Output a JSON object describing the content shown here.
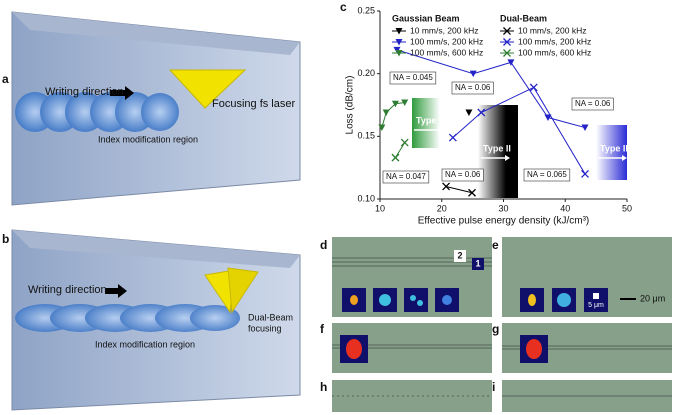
{
  "chart_data": {
    "type": "line",
    "panel": "c",
    "xlabel": "Effective pulse energy density (kJ/cm³)",
    "ylabel": "Loss (dB/cm)",
    "xlim": [
      10,
      50
    ],
    "xticks": [
      10,
      20,
      30,
      40,
      50
    ],
    "ylim": [
      0.1,
      0.25
    ],
    "yticks": [
      {
        "value": 0.1,
        "label": "0.10"
      },
      0.15,
      {
        "value": 0.2,
        "label": "0.20"
      },
      0.25
    ],
    "grid": false,
    "legend_groups": [
      {
        "title": "Gaussian Beam",
        "marker": "triangle"
      },
      {
        "title": "Dual-Beam",
        "marker": "cross"
      }
    ],
    "series": [
      {
        "name": "10 mm/s, 200 kHz",
        "color": "#000000",
        "marker": "triangle",
        "x": [
          24.4
        ],
        "values": [
          0.169
        ]
      },
      {
        "name": "100 mm/s, 200 kHz",
        "color": "#2323c8",
        "marker": "triangle",
        "x": [
          12.75,
          25.1,
          31.2,
          37.2,
          43.2
        ],
        "values": [
          0.219,
          0.2,
          0.209,
          0.165,
          0.157
        ]
      },
      {
        "name": "100 mm/s, 600 kHz",
        "color": "#2e7d32",
        "marker": "triangle",
        "x": [
          10.3,
          11,
          12.5,
          14
        ],
        "values": [
          0.157,
          0.169,
          0.176,
          0.177
        ]
      },
      {
        "name": "10 mm/s, 200 kHz",
        "color": "#000000",
        "marker": "cross",
        "x": [
          20.7,
          24.9
        ],
        "values": [
          0.11,
          0.105
        ]
      },
      {
        "name": "100 mm/s, 200 kHz",
        "color": "#2323c8",
        "marker": "cross",
        "x": [
          21.8,
          26.4,
          34.9,
          43.2
        ],
        "values": [
          0.149,
          0.169,
          0.189,
          0.12
        ]
      },
      {
        "name": "100 mm/s, 600 kHz",
        "color": "#2e7d32",
        "marker": "cross",
        "x": [
          12.5,
          14
        ],
        "values": [
          0.133,
          0.145
        ]
      }
    ],
    "annotations": [
      "NA = 0.045",
      "NA = 0.047",
      "NA = 0.06",
      "NA = 0.06",
      "NA = 0.065",
      "NA = 0.06"
    ],
    "regions": [
      "Type II",
      "Type II",
      "Type II"
    ]
  },
  "panel_a": {
    "letter": "a",
    "writing": "Writing direction",
    "laser": "Focusing fs laser",
    "region": "Index modification region"
  },
  "panel_b": {
    "letter": "b",
    "writing": "Writing direction",
    "focus": [
      "Dual-Beam",
      "focusing"
    ],
    "region": "Index modification region"
  },
  "micrographs": {
    "letters": [
      "d",
      "e",
      "f",
      "g",
      "h",
      "i"
    ],
    "markers": [
      "2",
      "1"
    ],
    "inset_scale": "5 μm",
    "scale_bar": "20 μm"
  }
}
